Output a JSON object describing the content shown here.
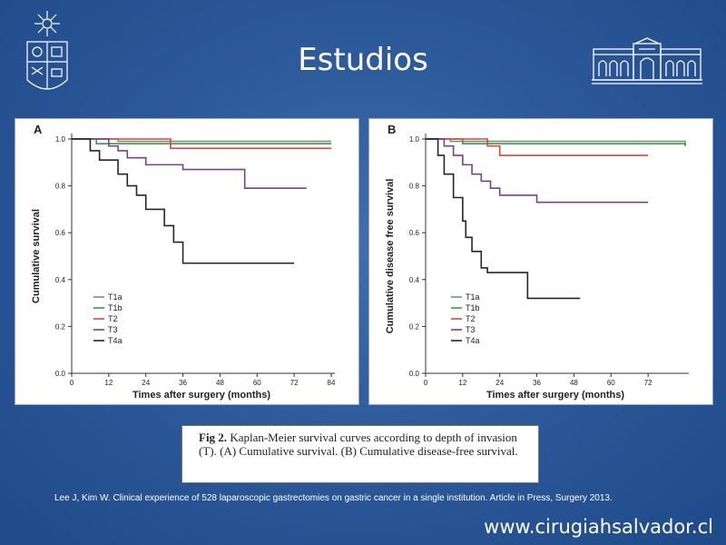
{
  "slide": {
    "title": "Estudios",
    "caption_fig": "Fig 2.",
    "caption_text": "Kaplan-Meier survival curves according to depth of invasion (T). (A) Cumulative survival. (B) Cumulative disease-free survival.",
    "reference": "Lee J, Kim W. Clinical experience of 528 laparoscopic gastrectomies on gastric cancer in a single institution. Article in Press, Surgery 2013.",
    "website": "www.cirugiahsalvador.cl"
  },
  "colors": {
    "background": "#2d5a9b",
    "T1a": "#7a8f80",
    "T1b": "#3c9a48",
    "T2": "#d8463a",
    "T3": "#7a3f94",
    "T4a": "#262626"
  },
  "chart_data": [
    {
      "type": "line",
      "panel_label": "A",
      "xlabel": "Times after surgery (months)",
      "ylabel": "Cumulative survival",
      "xlim": [
        0,
        84
      ],
      "ylim": [
        0,
        1.0
      ],
      "xticks": [
        0,
        12,
        24,
        36,
        48,
        60,
        72,
        84
      ],
      "yticks": [
        0.0,
        0.2,
        0.4,
        0.6,
        0.8,
        1.0
      ],
      "legend_position": "bottom-left",
      "series": [
        {
          "name": "T1a",
          "x": [
            0,
            15,
            84
          ],
          "y": [
            1.0,
            0.99,
            0.99
          ]
        },
        {
          "name": "T1b",
          "x": [
            0,
            8,
            84
          ],
          "y": [
            1.0,
            0.98,
            0.98
          ]
        },
        {
          "name": "T2",
          "x": [
            0,
            32,
            84
          ],
          "y": [
            1.0,
            0.96,
            0.96
          ]
        },
        {
          "name": "T3",
          "x": [
            0,
            12,
            15,
            18,
            24,
            36,
            56,
            76
          ],
          "y": [
            1.0,
            0.97,
            0.95,
            0.92,
            0.89,
            0.87,
            0.79,
            0.79
          ]
        },
        {
          "name": "T4a",
          "x": [
            0,
            6,
            9,
            15,
            18,
            21,
            24,
            30,
            33,
            36,
            72
          ],
          "y": [
            1.0,
            0.95,
            0.91,
            0.85,
            0.8,
            0.76,
            0.7,
            0.63,
            0.56,
            0.47,
            0.47
          ]
        }
      ]
    },
    {
      "type": "line",
      "panel_label": "B",
      "xlabel": "Times after surgery (months)",
      "ylabel": "Cumulative disease free survival",
      "xlim": [
        0,
        84
      ],
      "ylim": [
        0,
        1.0
      ],
      "xticks": [
        0,
        12,
        24,
        36,
        48,
        60,
        72
      ],
      "yticks": [
        0.0,
        0.2,
        0.4,
        0.6,
        0.8,
        1.0
      ],
      "legend_position": "bottom-left",
      "series": [
        {
          "name": "T1a",
          "x": [
            0,
            8,
            84
          ],
          "y": [
            1.0,
            0.99,
            0.97
          ]
        },
        {
          "name": "T1b",
          "x": [
            0,
            12,
            84
          ],
          "y": [
            1.0,
            0.98,
            0.97
          ]
        },
        {
          "name": "T2",
          "x": [
            0,
            20,
            24,
            72
          ],
          "y": [
            1.0,
            0.97,
            0.93,
            0.93
          ]
        },
        {
          "name": "T3",
          "x": [
            0,
            6,
            9,
            12,
            15,
            18,
            21,
            24,
            30,
            36,
            72
          ],
          "y": [
            1.0,
            0.97,
            0.93,
            0.89,
            0.85,
            0.82,
            0.79,
            0.76,
            0.76,
            0.73,
            0.73
          ]
        },
        {
          "name": "T4a",
          "x": [
            0,
            4,
            6,
            9,
            12,
            13,
            15,
            18,
            20,
            33,
            50
          ],
          "y": [
            1.0,
            0.93,
            0.85,
            0.75,
            0.65,
            0.58,
            0.52,
            0.45,
            0.43,
            0.32,
            0.32
          ]
        }
      ]
    }
  ]
}
